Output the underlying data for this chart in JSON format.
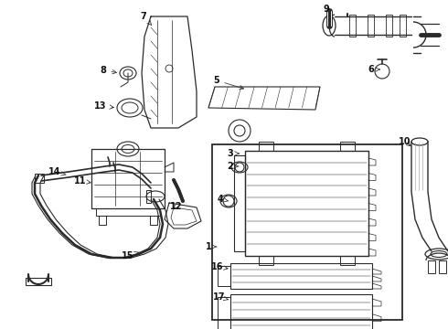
{
  "bg_color": "#ffffff",
  "line_color": "#2a2a2a",
  "label_color": "#111111",
  "fig_w": 4.9,
  "fig_h": 3.6,
  "dpi": 100
}
